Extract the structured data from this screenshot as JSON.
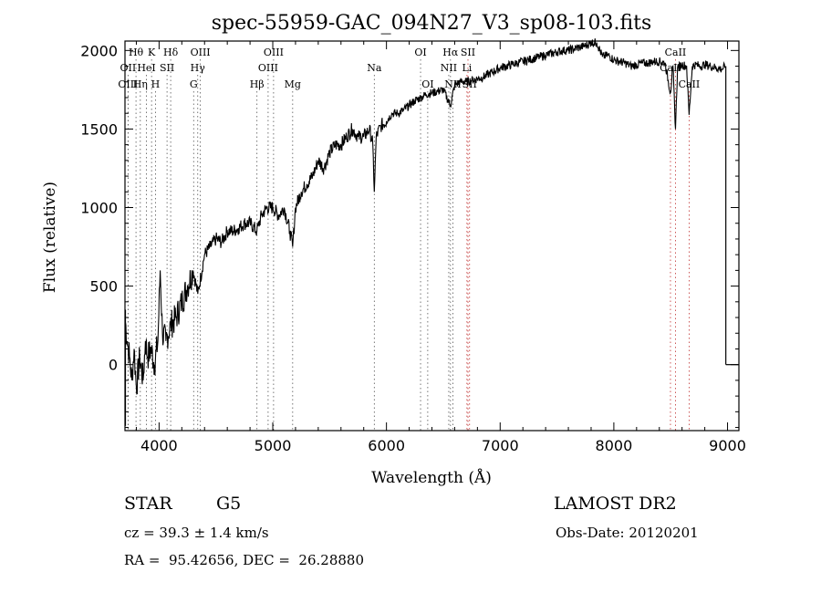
{
  "chart_data": {
    "type": "line",
    "title": "spec-55959-GAC_094N27_V3_sp08-103.fits",
    "xlabel": "Wavelength (Å)",
    "ylabel": "Flux (relative)",
    "xlim": [
      3700,
      9100
    ],
    "ylim": [
      -420,
      2060
    ],
    "xticks": [
      4000,
      5000,
      6000,
      7000,
      8000,
      9000
    ],
    "yticks": [
      0,
      500,
      1000,
      1500,
      2000
    ],
    "grid": false,
    "series": [
      {
        "x": [
          3700,
          3720,
          3740,
          3760,
          3780,
          3800,
          3830,
          3860,
          3880,
          3900,
          3930,
          3960,
          3990,
          4010,
          4030,
          4060,
          4100,
          4150,
          4200,
          4250,
          4300,
          4340,
          4400,
          4450,
          4500,
          4550,
          4600,
          4650,
          4700,
          4750,
          4800,
          4860,
          4900,
          4950,
          5000,
          5050,
          5100,
          5150,
          5175,
          5200,
          5250,
          5300,
          5350,
          5400,
          5450,
          5500,
          5550,
          5600,
          5650,
          5700,
          5750,
          5800,
          5850,
          5880,
          5893,
          5910,
          5950,
          6000,
          6050,
          6100,
          6150,
          6200,
          6250,
          6300,
          6350,
          6400,
          6450,
          6500,
          6562,
          6600,
          6650,
          6700,
          6750,
          6800,
          6850,
          6900,
          6950,
          7000,
          7050,
          7100,
          7150,
          7200,
          7250,
          7300,
          7350,
          7400,
          7450,
          7500,
          7550,
          7600,
          7650,
          7700,
          7750,
          7800,
          7850,
          7900,
          7950,
          8000,
          8050,
          8100,
          8150,
          8200,
          8250,
          8300,
          8350,
          8400,
          8450,
          8498,
          8520,
          8542,
          8560,
          8600,
          8640,
          8662,
          8690,
          8720,
          8760,
          8800,
          8850,
          8900,
          8950,
          8980
        ],
        "y": [
          300,
          150,
          50,
          -100,
          100,
          -150,
          50,
          -100,
          150,
          50,
          100,
          0,
          150,
          600,
          200,
          150,
          250,
          300,
          400,
          500,
          600,
          450,
          700,
          750,
          800,
          780,
          850,
          850,
          870,
          900,
          900,
          850,
          950,
          1000,
          1000,
          950,
          1000,
          850,
          750,
          1000,
          1100,
          1150,
          1200,
          1300,
          1250,
          1350,
          1400,
          1400,
          1450,
          1500,
          1450,
          1450,
          1500,
          1400,
          1100,
          1450,
          1520,
          1550,
          1600,
          1600,
          1620,
          1650,
          1680,
          1700,
          1720,
          1730,
          1740,
          1750,
          1650,
          1780,
          1800,
          1800,
          1810,
          1820,
          1830,
          1850,
          1870,
          1890,
          1900,
          1910,
          1920,
          1930,
          1940,
          1950,
          1960,
          1970,
          1980,
          1990,
          2000,
          2000,
          2010,
          2020,
          2030,
          2050,
          2050,
          1960,
          1970,
          1940,
          1930,
          1920,
          1900,
          1910,
          1920,
          1920,
          1930,
          1930,
          1920,
          1730,
          1900,
          1500,
          1890,
          1910,
          1900,
          1590,
          1900,
          1910,
          1900,
          1910,
          1900,
          1890,
          1880,
          1900
        ]
      }
    ],
    "line_ids": [
      {
        "label": "Hθ",
        "x": 3797,
        "row": 0,
        "type": "dot"
      },
      {
        "label": "K",
        "x": 3934,
        "row": 0,
        "type": "dot"
      },
      {
        "label": "Hδ",
        "x": 4102,
        "row": 0,
        "type": "dot"
      },
      {
        "label": "OIII",
        "x": 4363,
        "row": 0,
        "type": "dot"
      },
      {
        "label": "OIII",
        "x": 5007,
        "row": 0,
        "type": "dot"
      },
      {
        "label": "OI",
        "x": 6300,
        "row": 0,
        "type": "dot"
      },
      {
        "label": "Hα",
        "x": 6563,
        "row": 0,
        "type": "dot"
      },
      {
        "label": "SII",
        "x": 6717,
        "row": 0,
        "type": "red"
      },
      {
        "label": "CaII",
        "x": 8542,
        "row": 0,
        "type": "red"
      },
      {
        "label": "OII",
        "x": 3727,
        "row": 1,
        "type": "dot"
      },
      {
        "label": "HeI",
        "x": 3889,
        "row": 1,
        "type": "dot"
      },
      {
        "label": "SII",
        "x": 4070,
        "row": 1,
        "type": "dot"
      },
      {
        "label": "Hγ",
        "x": 4340,
        "row": 1,
        "type": "dot"
      },
      {
        "label": "OIII",
        "x": 4959,
        "row": 1,
        "type": "dot"
      },
      {
        "label": "Na",
        "x": 5893,
        "row": 1,
        "type": "dot"
      },
      {
        "label": "NII",
        "x": 6548,
        "row": 1,
        "type": "dot"
      },
      {
        "label": "Li",
        "x": 6708,
        "row": 1,
        "type": "red"
      },
      {
        "label": "CaII",
        "x": 8498,
        "row": 1,
        "type": "red"
      },
      {
        "label": "OIII",
        "x": 3727,
        "row": 2,
        "type": "dot"
      },
      {
        "label": "Hη",
        "x": 3835,
        "row": 2,
        "type": "dot"
      },
      {
        "label": "H",
        "x": 3968,
        "row": 2,
        "type": "dot"
      },
      {
        "label": "G",
        "x": 4304,
        "row": 2,
        "type": "dot"
      },
      {
        "label": "Hβ",
        "x": 4861,
        "row": 2,
        "type": "dot"
      },
      {
        "label": "Mg",
        "x": 5175,
        "row": 2,
        "type": "dot"
      },
      {
        "label": "OI",
        "x": 6363,
        "row": 2,
        "type": "dot"
      },
      {
        "label": "NII",
        "x": 6584,
        "row": 2,
        "type": "dot"
      },
      {
        "label": "SII",
        "x": 6731,
        "row": 2,
        "type": "red"
      },
      {
        "label": "CaII",
        "x": 8662,
        "row": 2,
        "type": "red"
      }
    ]
  },
  "info": {
    "class": "STAR",
    "subclass": "G5",
    "survey": "LAMOST DR2",
    "cz": "cz = 39.3 ± 1.4 km/s",
    "obs_date": "Obs-Date: 20120201",
    "coords": "RA =  95.42656, DEC =  26.28880"
  }
}
